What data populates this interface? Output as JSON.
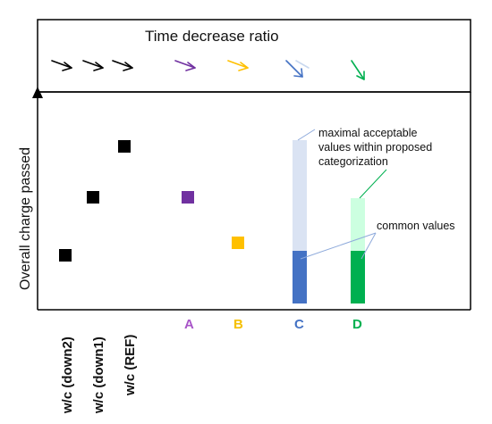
{
  "diagram": {
    "top_panel_title": "Time decrease ratio",
    "y_axis_label": "Overall charge passed",
    "x_labels": [
      {
        "text": "w/c (down2)",
        "color": "#111111"
      },
      {
        "text": "w/c (down1)",
        "color": "#111111"
      },
      {
        "text": "w/c (REF)",
        "color": "#111111"
      },
      {
        "text": "A",
        "color": "#a855c8"
      },
      {
        "text": "B",
        "color": "#f5c000"
      },
      {
        "text": "C",
        "color": "#4472c4"
      },
      {
        "text": "D",
        "color": "#00b050"
      }
    ],
    "annotations": {
      "maximal_line1": "maximal acceptable",
      "maximal_line2": "values within proposed",
      "maximal_line3": "categorization",
      "common": "common values"
    },
    "colors": {
      "black": "#000000",
      "A": "#7030a0",
      "B": "#ffc000",
      "C_dark": "#4472c4",
      "C_light": "#dae3f3",
      "D_dark": "#00b050",
      "D_light": "#ccffe0",
      "arrow_A": "#a855c8",
      "arrow_B": "#ffc000",
      "arrow_C": "#4472c4",
      "arrow_D": "#00b050"
    }
  }
}
